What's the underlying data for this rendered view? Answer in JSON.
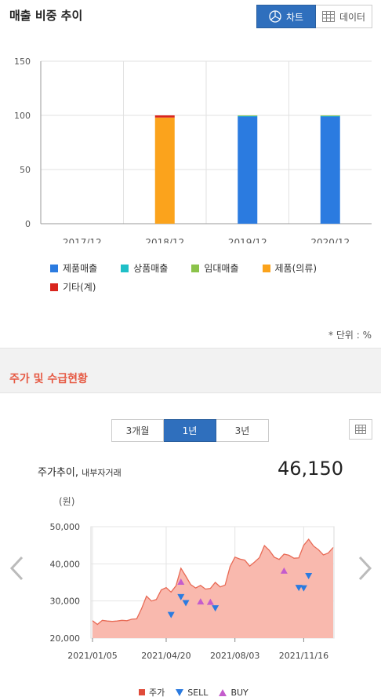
{
  "section1": {
    "title": "매출 비중 추이",
    "toggle": {
      "chart_label": "차트",
      "data_label": "데이터"
    },
    "unit_note": "* 단위 : %"
  },
  "section2": {
    "title": "주가 및 수급현황",
    "periods": [
      "3개월",
      "1년",
      "3년"
    ],
    "active_period": "1년",
    "stock_title": "주가추이,",
    "stock_subtitle": "내부자거래",
    "current_price": "46,150",
    "y_unit": "(원)"
  },
  "colors": {
    "accent_blue": "#2f6fbd",
    "section_red": "#e65a44",
    "price_fill": "#f9b9ae",
    "price_line": "#e86a55",
    "sell": "#2b7be0",
    "buy": "#c45ccc"
  },
  "icons": [
    "pie-chart-icon",
    "table-grid-icon",
    "chevron-left-icon",
    "chevron-right-icon"
  ],
  "chart_data": [
    {
      "type": "bar",
      "stacked": true,
      "categories": [
        "2017/12",
        "2018/12",
        "2019/12",
        "2020/12"
      ],
      "ylim": [
        0,
        150
      ],
      "yticks": [
        0,
        50,
        100,
        150
      ],
      "legend_position": "bottom",
      "series": [
        {
          "name": "제품매출",
          "color": "#2b7be0",
          "values": [
            0,
            0,
            99,
            99
          ]
        },
        {
          "name": "상품매출",
          "color": "#1fbfc7",
          "values": [
            0,
            0,
            0.5,
            0.5
          ]
        },
        {
          "name": "임대매출",
          "color": "#8bc34a",
          "values": [
            0,
            0,
            0.5,
            0.5
          ]
        },
        {
          "name": "제품(의류)",
          "color": "#fba31c",
          "values": [
            0,
            98,
            0,
            0
          ]
        },
        {
          "name": "기타(계)",
          "color": "#d9251d",
          "values": [
            0,
            2,
            0,
            0
          ]
        }
      ]
    },
    {
      "type": "area",
      "ylim": [
        20000,
        50000
      ],
      "yticks": [
        "20,000",
        "30,000",
        "40,000",
        "50,000"
      ],
      "xticks": [
        "2021/01/05",
        "2021/04/20",
        "2021/08/03",
        "2021/11/16"
      ],
      "legend_position": "bottom",
      "price_label": "주가",
      "price": [
        24700,
        23700,
        24800,
        24600,
        24500,
        24600,
        24800,
        24700,
        25100,
        25200,
        28000,
        31300,
        30000,
        30400,
        33000,
        33600,
        32400,
        34100,
        38800,
        36700,
        34400,
        33500,
        34200,
        33200,
        33400,
        35000,
        33800,
        34300,
        39200,
        41800,
        41300,
        41000,
        39400,
        40500,
        41700,
        44900,
        43600,
        41800,
        41200,
        42600,
        42300,
        41500,
        41600,
        45000,
        46600,
        44800,
        43800,
        42400,
        42900,
        44400
      ],
      "markers": [
        {
          "type": "SELL",
          "label": "SELL",
          "i": 16,
          "value": 26200
        },
        {
          "type": "SELL",
          "label": "SELL",
          "i": 18,
          "value": 31000
        },
        {
          "type": "SELL",
          "label": "SELL",
          "i": 19,
          "value": 29400
        },
        {
          "type": "SELL",
          "label": "SELL",
          "i": 25,
          "value": 28000
        },
        {
          "type": "SELL",
          "label": "SELL",
          "i": 42,
          "value": 33500
        },
        {
          "type": "SELL",
          "label": "SELL",
          "i": 43,
          "value": 33400
        },
        {
          "type": "SELL",
          "label": "SELL",
          "i": 44,
          "value": 36700
        },
        {
          "type": "BUY",
          "label": "BUY",
          "i": 18,
          "value": 35200
        },
        {
          "type": "BUY",
          "label": "BUY",
          "i": 22,
          "value": 29900
        },
        {
          "type": "BUY",
          "label": "BUY",
          "i": 24,
          "value": 29800
        },
        {
          "type": "BUY",
          "label": "BUY",
          "i": 39,
          "value": 38200
        }
      ]
    }
  ]
}
